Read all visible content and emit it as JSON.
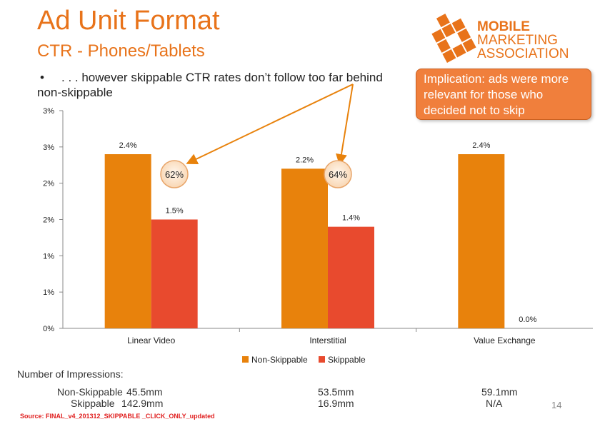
{
  "header": {
    "title": "Ad Unit Format",
    "subtitle": "CTR - Phones/Tablets",
    "bullet_mark": "•",
    "bullet_line1": ". . . however skippable CTR rates don’t follow too far behind",
    "bullet_line2": "non-skippable"
  },
  "logo": {
    "line1": "MOBILE",
    "line2": "MARKETING",
    "line3": "ASSOCIATION"
  },
  "callout": {
    "text": "Implication: ads were more relevant for those who decided not to skip"
  },
  "badges": [
    {
      "label": "62%"
    },
    {
      "label": "64%"
    }
  ],
  "chart_data": {
    "type": "bar",
    "categories": [
      "Linear Video",
      "Interstitial",
      "Value Exchange"
    ],
    "series": [
      {
        "name": "Non-Skippable",
        "color": "#e8820c",
        "values": [
          2.4,
          2.2,
          2.4
        ],
        "labels": [
          "2.4%",
          "2.2%",
          "2.4%"
        ]
      },
      {
        "name": "Skippable",
        "color": "#e84a2e",
        "values": [
          1.5,
          1.4,
          0.0
        ],
        "labels": [
          "1.5%",
          "1.4%",
          "0.0%"
        ]
      }
    ],
    "y_tick_labels": [
      "0%",
      "1%",
      "1%",
      "2%",
      "2%",
      "3%",
      "3%"
    ],
    "ylim": [
      0,
      3.0
    ],
    "legend_position": "bottom",
    "grid": false
  },
  "impressions": {
    "title": "Number of Impressions:",
    "rows": [
      {
        "label": "Non-Skippable",
        "values": [
          "45.5mm",
          "53.5mm",
          "59.1mm"
        ]
      },
      {
        "label": "Skippable",
        "values": [
          "142.9mm",
          "16.9mm",
          "N/A"
        ]
      }
    ]
  },
  "footer": {
    "source": "Source: FINAL_v4_201312_SKIPPABLE _CLICK_ONLY_updated",
    "page_number": "14"
  }
}
